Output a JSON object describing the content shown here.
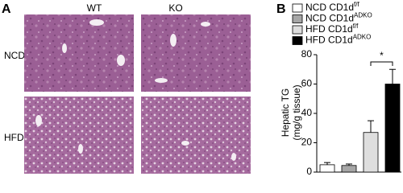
{
  "panel_a": {
    "label": "A",
    "columns": [
      "WT",
      "KO"
    ],
    "rows": [
      "NCD",
      "HFD"
    ]
  },
  "chart_data": {
    "type": "bar",
    "panel_label": "B",
    "y_label": [
      "Hepatic TG",
      "(mg/g tissue)"
    ],
    "series": [
      {
        "name": "NCD CD1d",
        "name_superscript": "f/f",
        "color": "#ffffff",
        "values": [
          5
        ],
        "errors": [
          1.5
        ]
      },
      {
        "name": "NCD CD1d",
        "name_superscript": "ADKO",
        "color": "#a6a6a6",
        "values": [
          4.5
        ],
        "errors": [
          1
        ]
      },
      {
        "name": "HFD CD1d",
        "name_superscript": "f/f",
        "color": "#dedede",
        "values": [
          27
        ],
        "errors": [
          8
        ]
      },
      {
        "name": "HFD CD1d",
        "name_superscript": "ADKO",
        "color": "#000000",
        "values": [
          60
        ],
        "errors": [
          10
        ]
      }
    ],
    "significance": "*",
    "ylim": [
      0,
      80
    ],
    "yticks": [
      0,
      20,
      40,
      60,
      80
    ]
  }
}
